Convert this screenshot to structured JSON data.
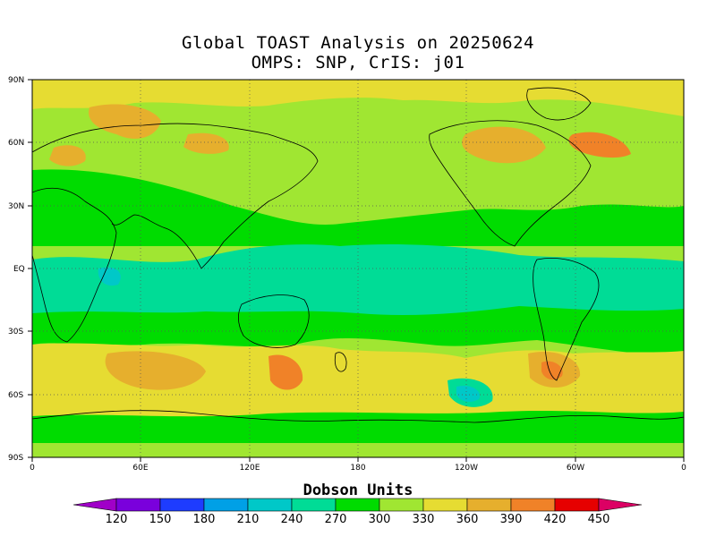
{
  "title_line1": "Global TOAST Analysis on 20250624",
  "title_line2": "OMPS: SNP, CrIS: j01",
  "lat_labels": [
    "90N",
    "60N",
    "30N",
    "EQ",
    "30S",
    "60S",
    "90S"
  ],
  "lon_labels": [
    "0",
    "60E",
    "120E",
    "180",
    "120W",
    "60W",
    "0"
  ],
  "colorbar": {
    "title": "Dobson Units",
    "values": [
      "120",
      "150",
      "180",
      "210",
      "240",
      "270",
      "300",
      "330",
      "360",
      "390",
      "420",
      "450"
    ],
    "colors": [
      "#a000c8",
      "#7a00dc",
      "#1e3cff",
      "#00a0e6",
      "#00c8c8",
      "#00dc96",
      "#00dc00",
      "#a0e632",
      "#e6dc32",
      "#e6af2d",
      "#f08228",
      "#e60000",
      "#dc0064"
    ]
  },
  "map_colors": {
    "c270": "#00dc96",
    "c300": "#00dc00",
    "c330": "#a0e632",
    "c360": "#e6dc32",
    "c390": "#e6af2d",
    "c420": "#f08228",
    "c240": "#00c8c8"
  }
}
